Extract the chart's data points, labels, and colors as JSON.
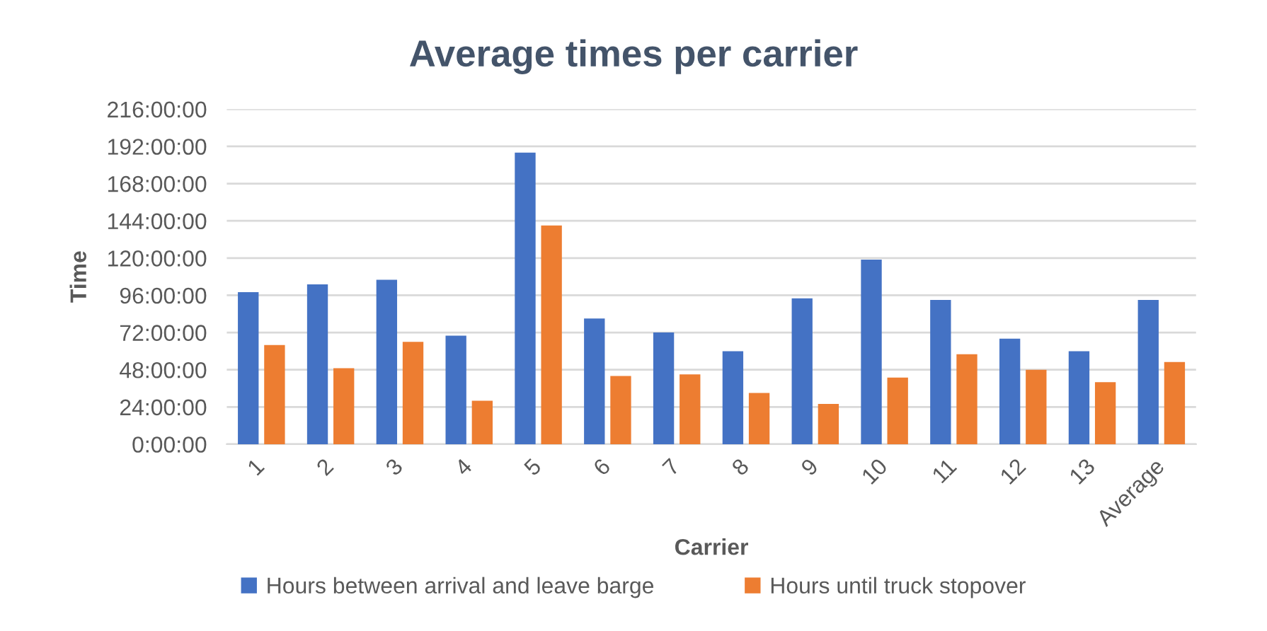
{
  "chart_data": {
    "type": "bar",
    "title": "Average times per carrier",
    "xlabel": "Carrier",
    "ylabel": "Time",
    "categories": [
      "1",
      "2",
      "3",
      "4",
      "5",
      "6",
      "7",
      "8",
      "9",
      "10",
      "11",
      "12",
      "13",
      "Average"
    ],
    "series": [
      {
        "name": "Hours between arrival and leave barge",
        "color": "#4472c4",
        "values": [
          98,
          103,
          106,
          70,
          188,
          81,
          72,
          60,
          94,
          119,
          93,
          68,
          60,
          93
        ]
      },
      {
        "name": "Hours until truck stopover",
        "color": "#ed7d31",
        "values": [
          64,
          49,
          66,
          28,
          141,
          44,
          45,
          33,
          26,
          43,
          58,
          48,
          40,
          53
        ]
      }
    ],
    "ylim": [
      0,
      216
    ],
    "yticks": [
      {
        "value": 0,
        "label": "0:00:00"
      },
      {
        "value": 24,
        "label": "24:00:00"
      },
      {
        "value": 48,
        "label": "48:00:00"
      },
      {
        "value": 72,
        "label": "72:00:00"
      },
      {
        "value": 96,
        "label": "96:00:00"
      },
      {
        "value": 120,
        "label": "120:00:00"
      },
      {
        "value": 144,
        "label": "144:00:00"
      },
      {
        "value": 168,
        "label": "168:00:00"
      },
      {
        "value": 192,
        "label": "192:00:00"
      },
      {
        "value": 216,
        "label": "216:00:00"
      }
    ],
    "grid": "y",
    "legend": "bottom"
  }
}
